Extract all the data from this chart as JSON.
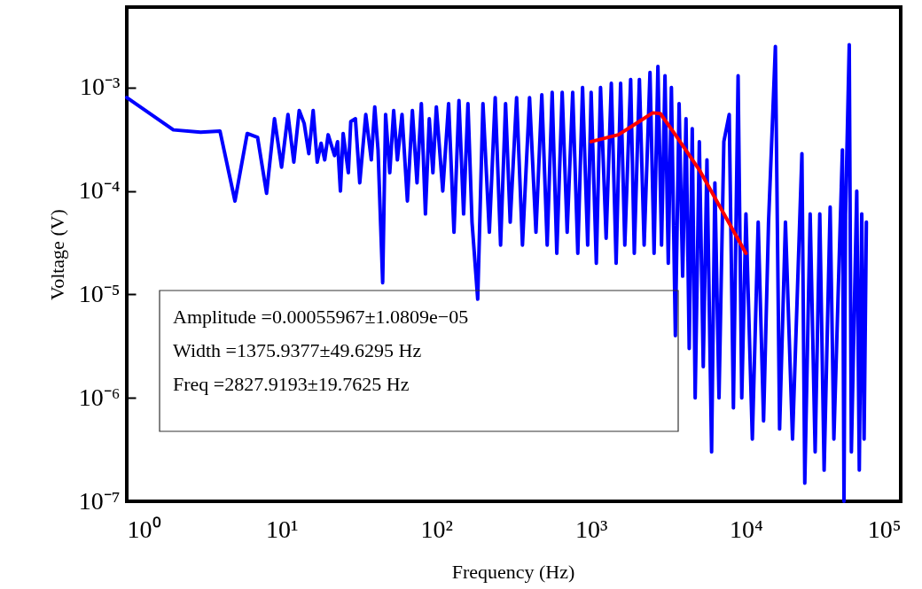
{
  "chart_data": {
    "type": "line",
    "xlabel": "Frequency (Hz)",
    "ylabel": "Voltage (V)",
    "log": "xy",
    "grid": false,
    "line_style": "solid",
    "marker": "none",
    "xlim": [
      1,
      100000
    ],
    "ylim": [
      1e-07,
      0.006
    ],
    "xticks": [
      {
        "value": 1,
        "label": "10⁰"
      },
      {
        "value": 10,
        "label": "10¹"
      },
      {
        "value": 100,
        "label": "10²"
      },
      {
        "value": 1000,
        "label": "10³"
      },
      {
        "value": 10000,
        "label": "10⁴"
      },
      {
        "value": 100000,
        "label": "10⁵"
      }
    ],
    "yticks": [
      {
        "value": 1e-07,
        "label": "10⁻⁷"
      },
      {
        "value": 1e-06,
        "label": "10⁻⁶"
      },
      {
        "value": 1e-05,
        "label": "10⁻⁵"
      },
      {
        "value": 0.0001,
        "label": "10⁻⁴"
      },
      {
        "value": 0.001,
        "label": "10⁻³"
      }
    ],
    "annotations": [
      "Amplitude  =0.00055967±1.0809e−05",
      "Width  =1375.9377±49.6295 Hz",
      "Freq  =2827.9193±19.7625 Hz"
    ],
    "series": [
      {
        "color": "#0000ff",
        "x": [
          1,
          2,
          3,
          4,
          5,
          6,
          7,
          8,
          9,
          10,
          11,
          12,
          13,
          14,
          15,
          16,
          17,
          18,
          19,
          20,
          22,
          23,
          24,
          25,
          27,
          28,
          30,
          32,
          35,
          38,
          40,
          42,
          45,
          47,
          50,
          53,
          56,
          60,
          65,
          70,
          75,
          80,
          85,
          90,
          95,
          100,
          110,
          120,
          130,
          140,
          150,
          160,
          170,
          185,
          200,
          220,
          240,
          260,
          280,
          300,
          330,
          360,
          400,
          440,
          480,
          520,
          560,
          600,
          650,
          700,
          760,
          820,
          880,
          950,
          1000,
          1080,
          1150,
          1250,
          1350,
          1450,
          1550,
          1650,
          1800,
          1900,
          2050,
          2200,
          2400,
          2550,
          2700,
          2850,
          3000,
          3150,
          3300,
          3500,
          3700,
          3900,
          4100,
          4300,
          4500,
          4700,
          5000,
          5300,
          5600,
          6000,
          6300,
          6700,
          7200,
          7800,
          8300,
          8900,
          9400,
          10000,
          11000,
          12000,
          13000,
          14000,
          15500,
          16500,
          18000,
          20000,
          23000,
          24000,
          26000,
          28000,
          30000,
          32000,
          35000,
          37000,
          42000,
          43000,
          44000,
          46500,
          48000,
          52000,
          54000,
          56000,
          58000,
          60000
        ],
        "values": [
          0.0008,
          0.00039,
          0.00037,
          0.00038,
          8e-05,
          0.00036,
          0.00033,
          9.5e-05,
          0.0005,
          0.00017,
          0.00055,
          0.00019,
          0.0006,
          0.00045,
          0.00023,
          0.0006,
          0.00019,
          0.00029,
          0.0002,
          0.00035,
          0.00022,
          0.0003,
          0.0001,
          0.00036,
          0.00015,
          0.00047,
          0.0005,
          0.00012,
          0.00055,
          0.0002,
          0.00065,
          0.00025,
          1.3e-05,
          0.00055,
          0.00015,
          0.0006,
          0.0002,
          0.00055,
          8e-05,
          0.0006,
          0.00012,
          0.0007,
          6e-05,
          0.0005,
          0.00015,
          0.00065,
          0.0001,
          0.0007,
          4e-05,
          0.00075,
          6e-05,
          0.0007,
          5e-05,
          9e-06,
          0.0007,
          4e-05,
          0.0008,
          3e-05,
          0.0007,
          5e-05,
          0.0008,
          3e-05,
          0.0008,
          4e-05,
          0.00085,
          3e-05,
          0.0009,
          2.5e-05,
          0.0009,
          4e-05,
          0.0009,
          2.5e-05,
          0.001,
          3e-05,
          0.0009,
          2e-05,
          0.001,
          3.5e-05,
          0.0011,
          2e-05,
          0.0011,
          3e-05,
          0.0012,
          2.5e-05,
          0.0012,
          3e-05,
          0.0014,
          2.5e-05,
          0.0016,
          3e-05,
          0.0013,
          2e-05,
          0.001,
          4e-06,
          0.0007,
          1.5e-05,
          0.0005,
          3e-06,
          0.0004,
          1e-06,
          0.0003,
          2e-06,
          0.0002,
          3e-07,
          0.00012,
          1e-06,
          0.0003,
          0.00055,
          8e-07,
          0.0013,
          1e-06,
          6e-05,
          4e-07,
          5e-05,
          6e-07,
          5e-05,
          0.0025,
          5e-07,
          5e-05,
          4e-07,
          0.00023,
          1.5e-07,
          6e-05,
          3e-07,
          6e-05,
          2e-07,
          7e-05,
          4e-07,
          0.00025,
          1e-07,
          6e-05,
          0.0026,
          3e-07,
          0.0001,
          2e-07,
          6e-05,
          4e-07,
          5e-05
        ]
      },
      {
        "color": "#ff0000",
        "x": [
          1000,
          1500,
          2000,
          2500,
          2800,
          3500,
          5000,
          7000,
          10000
        ],
        "values": [
          0.0003,
          0.00035,
          0.00046,
          0.00057,
          0.00056,
          0.00035,
          0.00016,
          6.5e-05,
          2.5e-05
        ]
      }
    ]
  }
}
